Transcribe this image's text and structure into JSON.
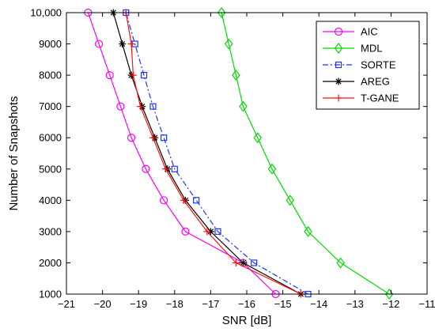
{
  "chart_data": {
    "type": "line",
    "xlabel": "SNR [dB]",
    "ylabel": "Number of Snapshots",
    "xlim": [
      -21,
      -11
    ],
    "ylim": [
      1000,
      10000
    ],
    "xticks": [
      -21,
      -20,
      -19,
      -18,
      -17,
      -16,
      -15,
      -14,
      -13,
      -12,
      -11
    ],
    "xtick_labels": [
      "−21",
      "−20",
      "−19",
      "−18",
      "−17",
      "−16",
      "−15",
      "−14",
      "−13",
      "−12",
      "−11"
    ],
    "yticks": [
      1000,
      2000,
      3000,
      4000,
      5000,
      6000,
      7000,
      8000,
      9000,
      10000
    ],
    "ytick_labels": [
      "1000",
      "2000",
      "3000",
      "4000",
      "5000",
      "6000",
      "7000",
      "8000",
      "9000",
      "10,000"
    ],
    "grid": false,
    "legend_position": "top-right",
    "series": [
      {
        "name": "AIC",
        "color": "#ff00ff",
        "marker": "circle",
        "dash": "solid",
        "x": [
          -15.2,
          -16.1,
          -17.7,
          -18.3,
          -18.8,
          -19.2,
          -19.5,
          -19.8,
          -20.1,
          -20.4
        ],
        "y": [
          1000,
          2000,
          3000,
          4000,
          5000,
          6000,
          7000,
          8000,
          9000,
          10000
        ]
      },
      {
        "name": "MDL",
        "color": "#00dd00",
        "marker": "diamond",
        "dash": "solid",
        "x": [
          -12.05,
          -13.4,
          -14.3,
          -14.8,
          -15.3,
          -15.7,
          -16.1,
          -16.3,
          -16.5,
          -16.7
        ],
        "y": [
          1000,
          2000,
          3000,
          4000,
          5000,
          6000,
          7000,
          8000,
          9000,
          10000
        ]
      },
      {
        "name": "SORTE",
        "color": "#1f35ff",
        "marker": "square",
        "dash": "dashdot",
        "x": [
          -14.3,
          -15.8,
          -16.8,
          -17.4,
          -18.0,
          -18.3,
          -18.6,
          -18.85,
          -19.1,
          -19.35
        ],
        "y": [
          1000,
          2000,
          3000,
          4000,
          5000,
          6000,
          7000,
          8000,
          9000,
          10000
        ]
      },
      {
        "name": "AREG",
        "color": "#000000",
        "marker": "asterisk",
        "dash": "solid",
        "x": [
          -14.5,
          -16.1,
          -17.0,
          -17.7,
          -18.2,
          -18.55,
          -18.9,
          -19.2,
          -19.45,
          -19.7
        ],
        "y": [
          1000,
          2000,
          3000,
          4000,
          5000,
          6000,
          7000,
          8000,
          9000,
          10000
        ]
      },
      {
        "name": "T-GANE",
        "color": "#ff1111",
        "marker": "plus",
        "dash": "solid",
        "x": [
          -14.5,
          -16.3,
          -17.1,
          -17.75,
          -18.25,
          -18.6,
          -18.95,
          -19.15,
          -19.2,
          -19.35
        ],
        "y": [
          1000,
          2000,
          3000,
          4000,
          5000,
          6000,
          7000,
          8000,
          9000,
          10000
        ]
      }
    ]
  }
}
